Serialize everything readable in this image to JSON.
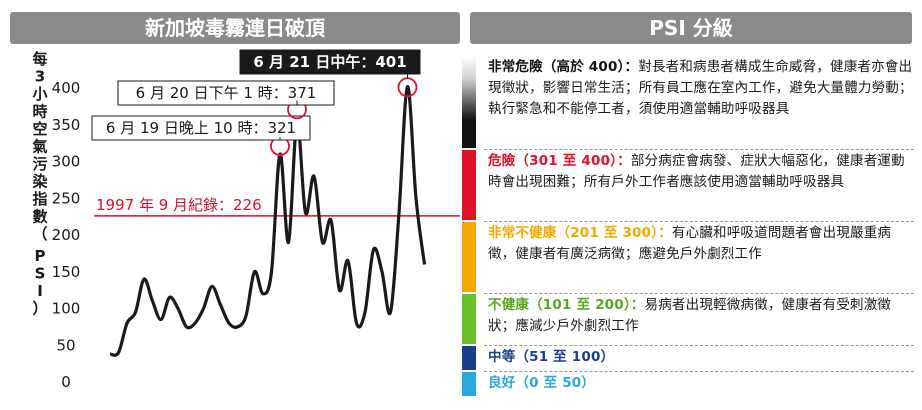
{
  "left_panel": {
    "title": "新加坡毒霧連日破頂"
  },
  "right_panel": {
    "title": "PSI 分級"
  },
  "chart_data": {
    "type": "line",
    "ylabel": "每3小時空氣污染指數（PSI）",
    "yticks": [
      0,
      50,
      100,
      150,
      200,
      250,
      300,
      350,
      400
    ],
    "ylim": [
      0,
      420
    ],
    "xlim": [
      0,
      40
    ],
    "grid": false,
    "series": [
      {
        "color": "#1a1a1a",
        "x": [
          0,
          1,
          2,
          3,
          4,
          5,
          6,
          7,
          8,
          9,
          10,
          11,
          12,
          13,
          14,
          15,
          16,
          17,
          18,
          19,
          20,
          21,
          22,
          23,
          24,
          25,
          26,
          27,
          28,
          29,
          30,
          31,
          32,
          33,
          34,
          35,
          36,
          37
        ],
        "y": [
          38,
          40,
          80,
          95,
          140,
          110,
          85,
          115,
          100,
          75,
          80,
          100,
          130,
          105,
          80,
          75,
          90,
          150,
          120,
          150,
          310,
          190,
          355,
          230,
          280,
          190,
          220,
          125,
          165,
          80,
          95,
          180,
          150,
          95,
          230,
          402,
          250,
          160
        ]
      }
    ],
    "reference_line": {
      "y": 226,
      "label": "1997 年 9 月紀錄：226",
      "color": "#d0142c"
    },
    "annotations": [
      {
        "x": 20,
        "y": 321,
        "label": "6 月 19 日晚上 10 時：321",
        "style": "box"
      },
      {
        "x": 22,
        "y": 371,
        "label": "6 月 20 日下午 1 時：371",
        "style": "box"
      },
      {
        "x": 35,
        "y": 401,
        "label": "6 月 21 日中午：401",
        "style": "dark"
      }
    ]
  },
  "legend": {
    "items": [
      {
        "key": "hazardous",
        "color": "#111111",
        "head": "非常危險（高於 400）：",
        "head_color": "#111111",
        "desc": "對長者和病患者構成生命威脅，健康者亦會出現徵狀，影響日常生活；所有員工應在室內工作，避免大量體力勞動；執行緊急和不能停工者，須使用適當輔助呼吸器具"
      },
      {
        "key": "very-dangerous",
        "color": "#e0112b",
        "head": "危險（301 至 400）：",
        "head_color": "#e0112b",
        "desc": "部分病症會病發、症狀大幅惡化，健康者運動時會出現困難；所有戶外工作者應該使用適當輔助呼吸器具"
      },
      {
        "key": "very-unhealthy",
        "color": "#f4a900",
        "head": "非常不健康（201 至 300）：",
        "head_color": "#f4a900",
        "desc": "有心臟和呼吸道問題者會出現嚴重病徵，健康者有廣泛病徵；應避免戶外劇烈工作"
      },
      {
        "key": "unhealthy",
        "color": "#6cbe2c",
        "head": "不健康（101 至 200）：",
        "head_color": "#5aa81f",
        "desc": "易病者出現輕微病徵，健康者有受刺激徵狀；應減少戶外劇烈工作"
      },
      {
        "key": "moderate",
        "color": "#1c3e8f",
        "head": "中等（51 至 100）",
        "head_color": "#1c3e8f",
        "desc": ""
      },
      {
        "key": "good",
        "color": "#29a8e0",
        "head": "良好（0 至 50）",
        "head_color": "#29a8e0",
        "desc": ""
      }
    ]
  }
}
